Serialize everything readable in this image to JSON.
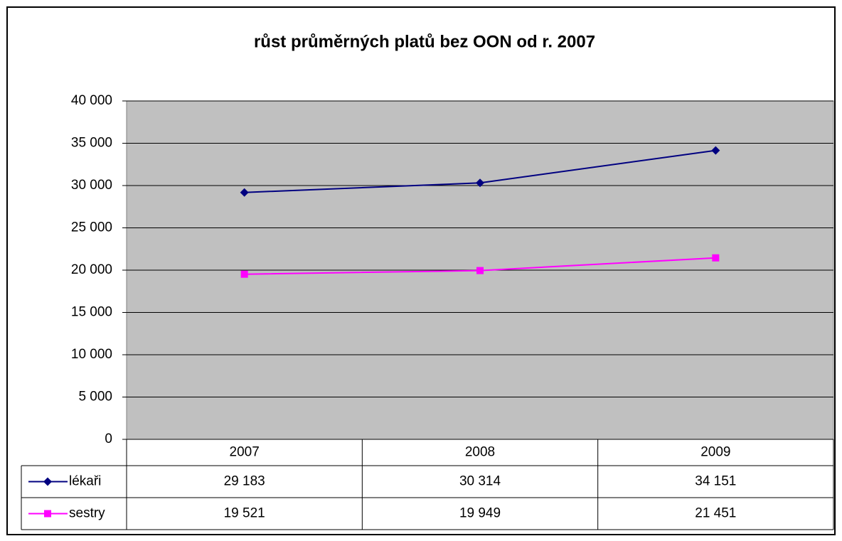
{
  "chart_data": {
    "type": "line",
    "title": "růst průměrných platů bez OON od r. 2007",
    "categories": [
      "2007",
      "2008",
      "2009"
    ],
    "series": [
      {
        "name": "lékaři",
        "color": "#000080",
        "marker": "diamond",
        "values": [
          29183,
          30314,
          34151
        ],
        "value_labels": [
          "29 183",
          "30 314",
          "34 151"
        ]
      },
      {
        "name": "sestry",
        "color": "#ff00ff",
        "marker": "square",
        "values": [
          19521,
          19949,
          21451
        ],
        "value_labels": [
          "19 521",
          "19 949",
          "21 451"
        ]
      }
    ],
    "ylim": [
      0,
      40000
    ],
    "yticks": [
      0,
      {
        "value": 5000,
        "label": "5 000"
      },
      {
        "value": 10000,
        "label": "10 000"
      },
      {
        "value": 15000,
        "label": "15 000"
      },
      {
        "value": 20000,
        "label": "20 000"
      },
      {
        "value": 25000,
        "label": "25 000"
      },
      {
        "value": 30000,
        "label": "30 000"
      },
      {
        "value": 35000,
        "label": "35 000"
      },
      {
        "value": 40000,
        "label": "40 000"
      }
    ],
    "grid": true,
    "plot_background": "#c0c0c0"
  }
}
